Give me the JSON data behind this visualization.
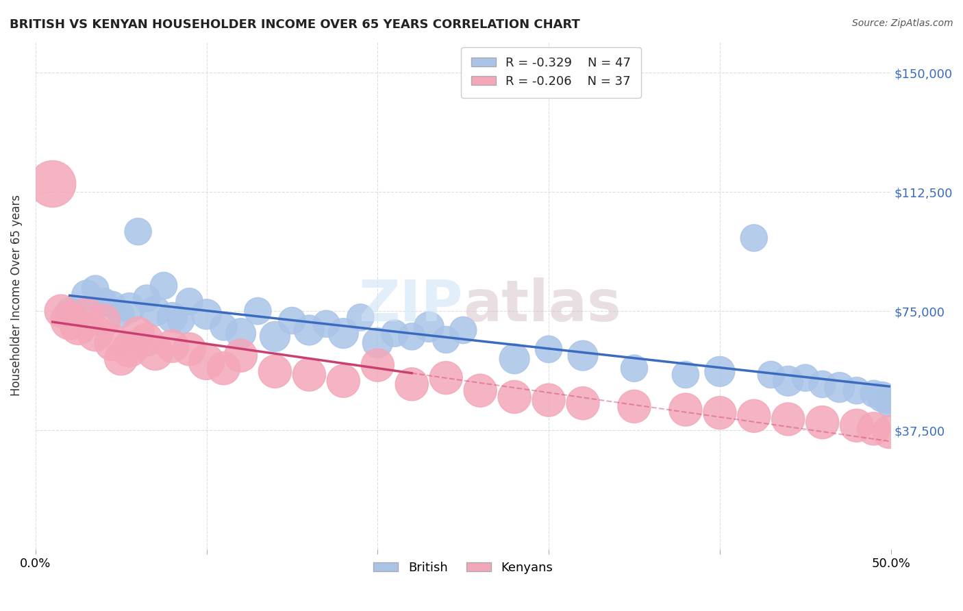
{
  "title": "BRITISH VS KENYAN HOUSEHOLDER INCOME OVER 65 YEARS CORRELATION CHART",
  "source": "Source: ZipAtlas.com",
  "xlabel": "",
  "ylabel": "Householder Income Over 65 years",
  "xlim": [
    0.0,
    0.5
  ],
  "ylim": [
    0,
    160000
  ],
  "yticks": [
    0,
    37500,
    75000,
    112500,
    150000
  ],
  "ytick_labels": [
    "",
    "$37,500",
    "$75,000",
    "$112,500",
    "$150,000"
  ],
  "xticks": [
    0.0,
    0.1,
    0.2,
    0.3,
    0.4,
    0.5
  ],
  "xtick_labels": [
    "0.0%",
    "",
    "",
    "",
    "",
    "50.0%"
  ],
  "background_color": "#ffffff",
  "grid_color": "#dddddd",
  "british_color": "#aac4e8",
  "kenyan_color": "#f4a7b9",
  "british_line_color": "#3a6bbf",
  "kenyan_line_color": "#c94070",
  "R_british": -0.329,
  "N_british": 47,
  "R_kenyan": -0.206,
  "N_kenyan": 37,
  "british_x": [
    0.02,
    0.03,
    0.035,
    0.04,
    0.045,
    0.05,
    0.055,
    0.06,
    0.065,
    0.07,
    0.075,
    0.08,
    0.085,
    0.09,
    0.1,
    0.11,
    0.12,
    0.13,
    0.14,
    0.15,
    0.16,
    0.17,
    0.18,
    0.19,
    0.2,
    0.21,
    0.22,
    0.23,
    0.24,
    0.25,
    0.28,
    0.3,
    0.32,
    0.35,
    0.38,
    0.4,
    0.42,
    0.43,
    0.44,
    0.45,
    0.46,
    0.47,
    0.48,
    0.49,
    0.495,
    0.498,
    0.499
  ],
  "british_y": [
    75000,
    80000,
    82000,
    78000,
    77000,
    74000,
    76000,
    100000,
    79000,
    75000,
    83000,
    73000,
    72000,
    78000,
    74000,
    70000,
    68000,
    75000,
    67000,
    72000,
    69000,
    71000,
    68000,
    73000,
    65000,
    68000,
    67000,
    70000,
    66000,
    69000,
    60000,
    63000,
    61000,
    57000,
    55000,
    56000,
    98000,
    55000,
    53000,
    54000,
    52000,
    51000,
    50000,
    49000,
    48000,
    47000,
    46000
  ],
  "british_sizes": [
    20,
    25,
    20,
    20,
    20,
    20,
    25,
    20,
    20,
    25,
    20,
    25,
    20,
    20,
    25,
    20,
    25,
    20,
    25,
    20,
    25,
    20,
    25,
    20,
    25,
    20,
    20,
    25,
    20,
    20,
    25,
    20,
    25,
    20,
    20,
    25,
    20,
    20,
    25,
    20,
    20,
    25,
    20,
    20,
    25,
    20,
    20
  ],
  "kenyan_x": [
    0.01,
    0.015,
    0.02,
    0.025,
    0.03,
    0.035,
    0.04,
    0.045,
    0.05,
    0.055,
    0.06,
    0.065,
    0.07,
    0.08,
    0.09,
    0.1,
    0.11,
    0.12,
    0.14,
    0.16,
    0.18,
    0.2,
    0.22,
    0.24,
    0.26,
    0.28,
    0.3,
    0.32,
    0.35,
    0.38,
    0.4,
    0.42,
    0.44,
    0.46,
    0.48,
    0.49,
    0.499
  ],
  "kenyan_y": [
    115000,
    75000,
    72000,
    70000,
    74000,
    68000,
    72000,
    65000,
    60000,
    63000,
    68000,
    66000,
    62000,
    64000,
    63000,
    59000,
    57000,
    61000,
    56000,
    55000,
    53000,
    58000,
    52000,
    54000,
    50000,
    48000,
    47000,
    46000,
    45000,
    44000,
    43000,
    42000,
    41000,
    40000,
    39000,
    38000,
    37000
  ],
  "kenyan_sizes": [
    60,
    30,
    40,
    35,
    30,
    35,
    30,
    35,
    30,
    35,
    30,
    30,
    35,
    30,
    30,
    35,
    30,
    30,
    30,
    30,
    30,
    30,
    30,
    30,
    30,
    30,
    30,
    30,
    30,
    30,
    30,
    30,
    30,
    30,
    30,
    30,
    30
  ]
}
